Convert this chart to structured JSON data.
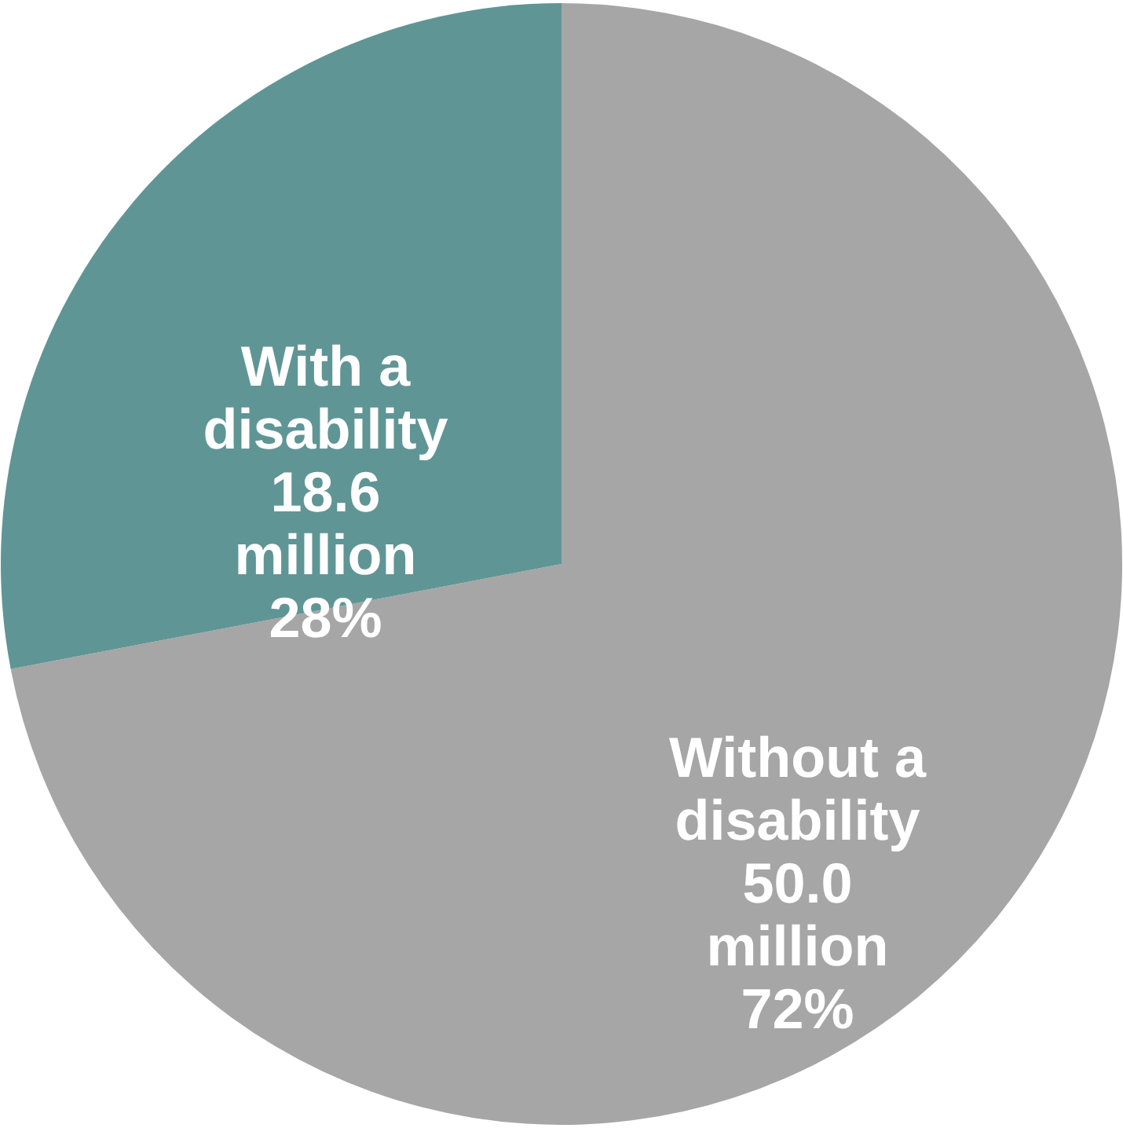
{
  "chart_data": {
    "type": "pie",
    "categories": [
      "Without a disability",
      "With a disability"
    ],
    "values": [
      72,
      28
    ],
    "colors": [
      "#a6a6a6",
      "#609595"
    ],
    "value_labels": [
      "50.0 million 72%",
      "18.6 million 28%"
    ],
    "legend": false
  }
}
